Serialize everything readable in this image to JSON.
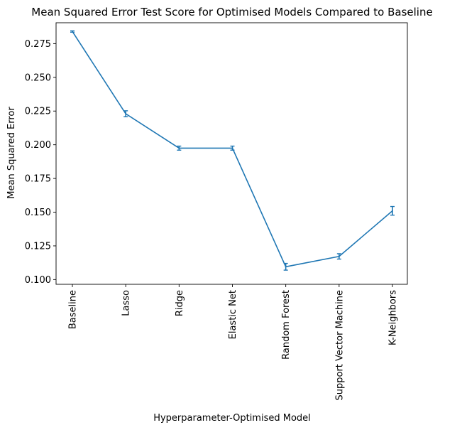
{
  "chart_data": {
    "type": "line",
    "title": "Mean Squared Error Test Score for Optimised Models Compared to Baseline",
    "xlabel": "Hyperparameter-Optimised Model",
    "ylabel": "Mean Squared Error",
    "categories": [
      "Baseline",
      "Lasso",
      "Ridge",
      "Elastic Net",
      "Random Forest",
      "Support Vector Machine",
      "K-Neighbors"
    ],
    "series": [
      {
        "values": [
          0.284,
          0.223,
          0.1975,
          0.1975,
          0.1095,
          0.1172,
          0.151
        ],
        "errors": [
          0.0005,
          0.0022,
          0.0015,
          0.0015,
          0.0025,
          0.002,
          0.0032
        ]
      }
    ],
    "ylim": [
      0.0965,
      0.2905
    ],
    "yticks": [
      0.1,
      0.125,
      0.15,
      0.175,
      0.2,
      0.225,
      0.25,
      0.275
    ],
    "ytick_labels": [
      "0.100",
      "0.125",
      "0.150",
      "0.175",
      "0.200",
      "0.225",
      "0.250",
      "0.275"
    ],
    "grid": false,
    "color": "#1f77b4"
  }
}
